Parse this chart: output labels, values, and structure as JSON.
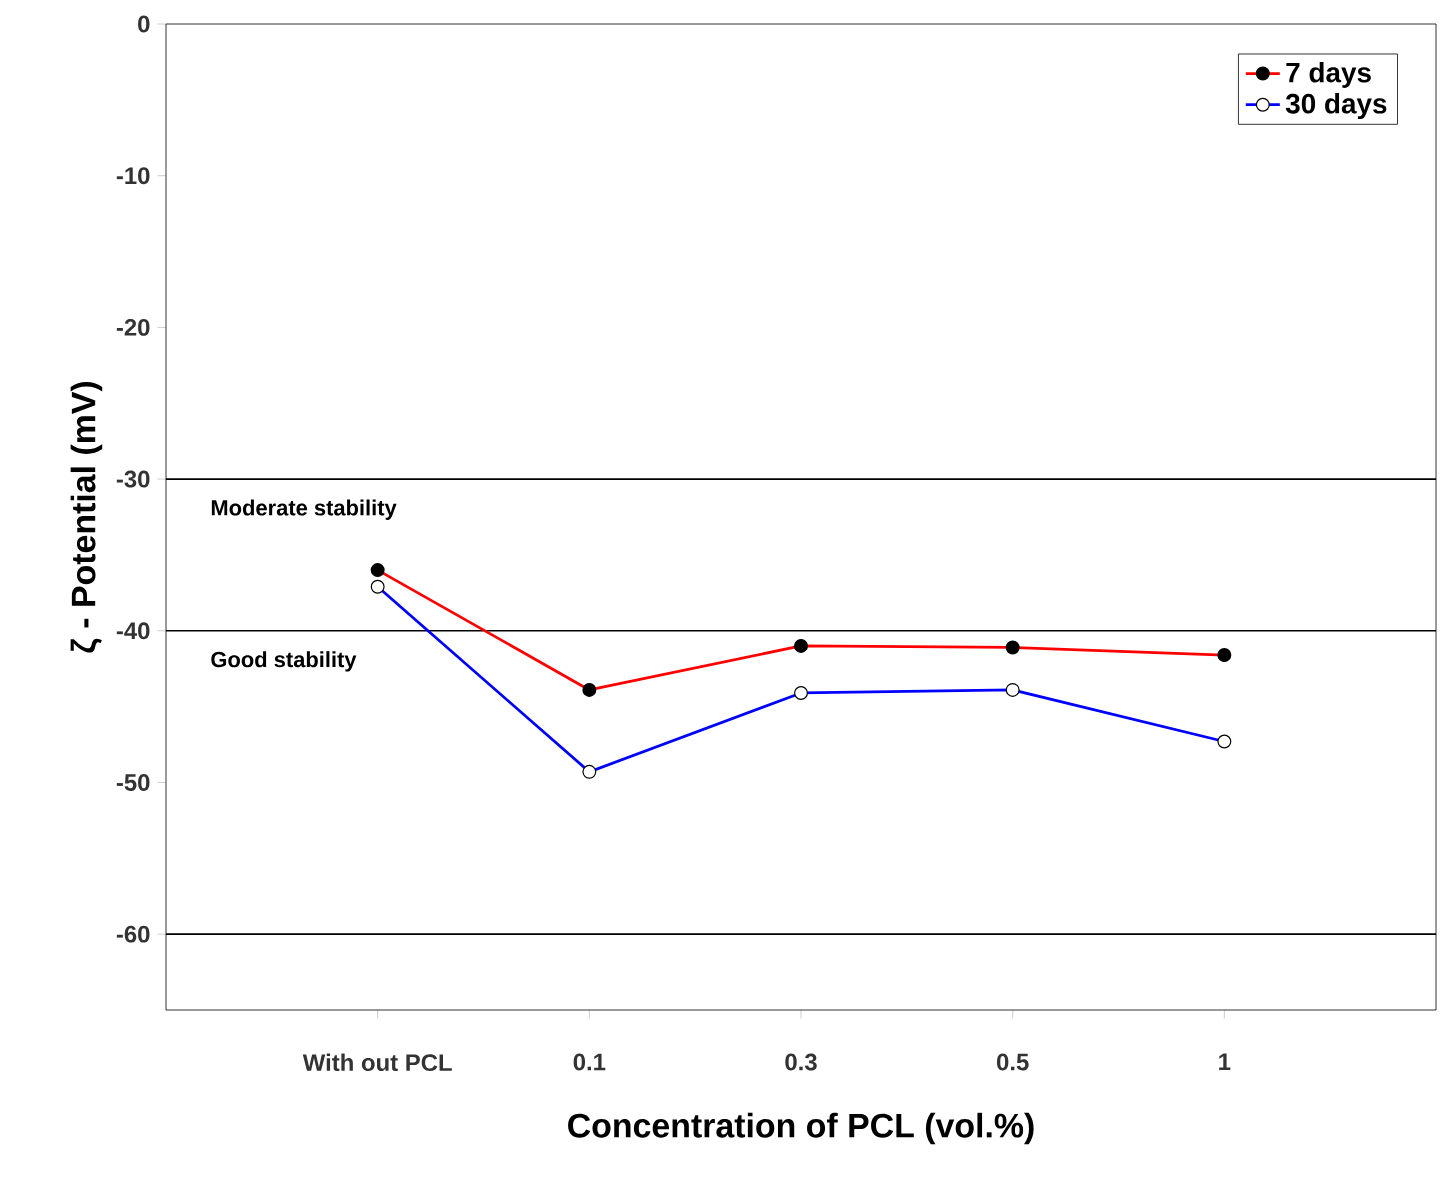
{
  "chart_data": {
    "type": "line",
    "xlabel": "Concentration of PCL (vol.%)",
    "ylabel": "ζ  - Potential (mV)",
    "categories": [
      "With out PCL",
      "0.1",
      "0.3",
      "0.5",
      "1"
    ],
    "series": [
      {
        "name": "7 days",
        "color": "#ff0000",
        "values": [
          -36.0,
          -43.9,
          -41.0,
          -41.1,
          -41.6
        ]
      },
      {
        "name": "30 days",
        "color": "#0000ff",
        "values": [
          -37.1,
          -49.3,
          -44.1,
          -43.9,
          -47.3
        ]
      }
    ],
    "ylim": [
      -65,
      0
    ],
    "yticks": [
      -60,
      -50,
      -40,
      -30,
      -20,
      -10,
      0
    ],
    "ref_lines": [
      {
        "axis": "y",
        "value": -30,
        "label": "Moderate stability",
        "color": "#000000"
      },
      {
        "axis": "y",
        "value": -40,
        "label": "Good stability",
        "color": "#000000"
      },
      {
        "axis": "y",
        "value": -60,
        "color": "#000000"
      }
    ],
    "legend": "top right",
    "marker": "circle",
    "grid": false
  }
}
